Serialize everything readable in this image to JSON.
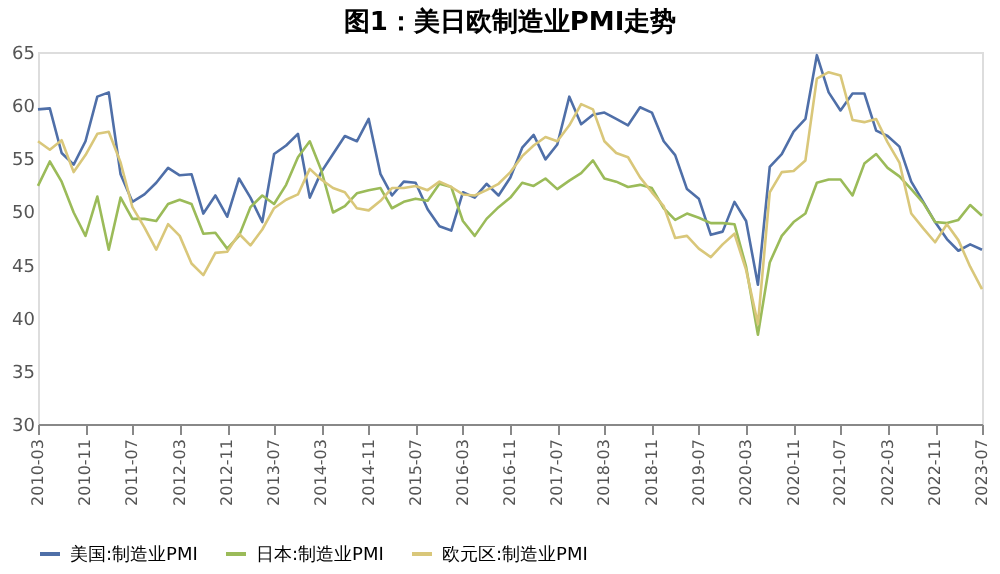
{
  "chart_data": {
    "type": "line",
    "title": "图1：美日欧制造业PMI走势",
    "x": [
      "2010-03",
      "2010-05",
      "2010-07",
      "2010-09",
      "2010-11",
      "2011-01",
      "2011-03",
      "2011-05",
      "2011-07",
      "2011-09",
      "2011-11",
      "2012-01",
      "2012-03",
      "2012-05",
      "2012-07",
      "2012-09",
      "2012-11",
      "2013-01",
      "2013-03",
      "2013-05",
      "2013-07",
      "2013-09",
      "2013-11",
      "2014-01",
      "2014-03",
      "2014-05",
      "2014-07",
      "2014-09",
      "2014-11",
      "2015-01",
      "2015-03",
      "2015-05",
      "2015-07",
      "2015-09",
      "2015-11",
      "2016-01",
      "2016-03",
      "2016-05",
      "2016-07",
      "2016-09",
      "2016-11",
      "2017-01",
      "2017-03",
      "2017-05",
      "2017-07",
      "2017-09",
      "2017-11",
      "2018-01",
      "2018-03",
      "2018-05",
      "2018-07",
      "2018-09",
      "2018-11",
      "2019-01",
      "2019-03",
      "2019-05",
      "2019-07",
      "2019-09",
      "2019-11",
      "2020-01",
      "2020-03",
      "2020-05",
      "2020-07",
      "2020-09",
      "2020-11",
      "2021-01",
      "2021-03",
      "2021-05",
      "2021-07",
      "2021-09",
      "2021-11",
      "2022-01",
      "2022-03",
      "2022-05",
      "2022-07",
      "2022-09",
      "2022-11",
      "2023-01",
      "2023-03",
      "2023-05",
      "2023-07"
    ],
    "series": [
      {
        "name": "美国:制造业PMI",
        "color": "#4f6fa8",
        "values": [
          59.6,
          59.7,
          55.5,
          54.4,
          56.6,
          60.8,
          61.2,
          53.5,
          50.9,
          51.6,
          52.7,
          54.1,
          53.4,
          53.5,
          49.8,
          51.5,
          49.5,
          53.1,
          51.3,
          49.0,
          55.4,
          56.2,
          57.3,
          51.3,
          53.7,
          55.4,
          57.1,
          56.6,
          58.7,
          53.5,
          51.5,
          52.8,
          52.7,
          50.2,
          48.6,
          48.2,
          51.8,
          51.3,
          52.6,
          51.5,
          53.2,
          56.0,
          57.2,
          54.9,
          56.3,
          60.8,
          58.2,
          59.1,
          59.3,
          58.7,
          58.1,
          59.8,
          59.3,
          56.6,
          55.3,
          52.1,
          51.2,
          47.8,
          48.1,
          50.9,
          49.1,
          43.1,
          54.2,
          55.4,
          57.5,
          58.7,
          64.7,
          61.2,
          59.5,
          61.1,
          61.1,
          57.6,
          57.1,
          56.1,
          52.8,
          50.9,
          49.0,
          47.4,
          46.3,
          46.9,
          46.4
        ]
      },
      {
        "name": "日本:制造业PMI",
        "color": "#9bbb59",
        "values": [
          52.4,
          54.7,
          52.8,
          49.9,
          47.7,
          51.4,
          46.4,
          51.3,
          49.3,
          49.3,
          49.1,
          50.7,
          51.1,
          50.7,
          47.9,
          48.0,
          46.5,
          47.7,
          50.4,
          51.5,
          50.7,
          52.5,
          55.1,
          56.6,
          53.9,
          49.9,
          50.5,
          51.7,
          52.0,
          52.2,
          50.3,
          50.9,
          51.2,
          51.0,
          52.6,
          52.3,
          49.1,
          47.7,
          49.3,
          50.4,
          51.3,
          52.7,
          52.4,
          53.1,
          52.1,
          52.9,
          53.6,
          54.8,
          53.1,
          52.8,
          52.3,
          52.5,
          52.2,
          50.3,
          49.2,
          49.8,
          49.4,
          48.9,
          48.9,
          48.8,
          44.8,
          38.4,
          45.2,
          47.7,
          49.0,
          49.8,
          52.7,
          53.0,
          53.0,
          51.5,
          54.5,
          55.4,
          54.1,
          53.3,
          52.1,
          50.8,
          49.0,
          48.9,
          49.2,
          50.6,
          49.6
        ]
      },
      {
        "name": "欧元区:制造业PMI",
        "color": "#d9c77a",
        "values": [
          56.6,
          55.8,
          56.7,
          53.7,
          55.3,
          57.3,
          57.5,
          54.6,
          50.4,
          48.5,
          46.4,
          48.8,
          47.7,
          45.1,
          44.0,
          46.1,
          46.2,
          47.9,
          46.8,
          48.3,
          50.3,
          51.1,
          51.6,
          54.0,
          53.0,
          52.2,
          51.8,
          50.3,
          50.1,
          51.0,
          52.2,
          52.2,
          52.4,
          52.0,
          52.8,
          52.3,
          51.6,
          51.5,
          52.0,
          52.6,
          53.7,
          55.2,
          56.2,
          57.0,
          56.6,
          58.1,
          60.1,
          59.6,
          56.6,
          55.5,
          55.1,
          53.2,
          51.8,
          50.5,
          47.5,
          47.7,
          46.5,
          45.7,
          46.9,
          47.9,
          44.5,
          39.4,
          51.8,
          53.7,
          53.8,
          54.8,
          62.5,
          63.1,
          62.8,
          58.6,
          58.4,
          58.7,
          56.5,
          54.6,
          49.8,
          48.4,
          47.1,
          48.8,
          47.3,
          44.8,
          42.7
        ]
      }
    ],
    "xlim": [
      "2010-03",
      "2023-07"
    ],
    "xticks": [
      "2010-03",
      "2010-11",
      "2011-07",
      "2012-03",
      "2012-11",
      "2013-07",
      "2014-03",
      "2014-11",
      "2015-07",
      "2016-03",
      "2016-11",
      "2017-07",
      "2018-03",
      "2018-11",
      "2019-07",
      "2020-03",
      "2020-11",
      "2021-07",
      "2022-03",
      "2022-11",
      "2023-07"
    ],
    "ylim": [
      30,
      65
    ],
    "yticks": [
      30,
      35,
      40,
      45,
      50,
      55,
      60,
      65
    ],
    "grid": false,
    "legend": "bottom",
    "marker": "none",
    "line_style": "solid"
  }
}
